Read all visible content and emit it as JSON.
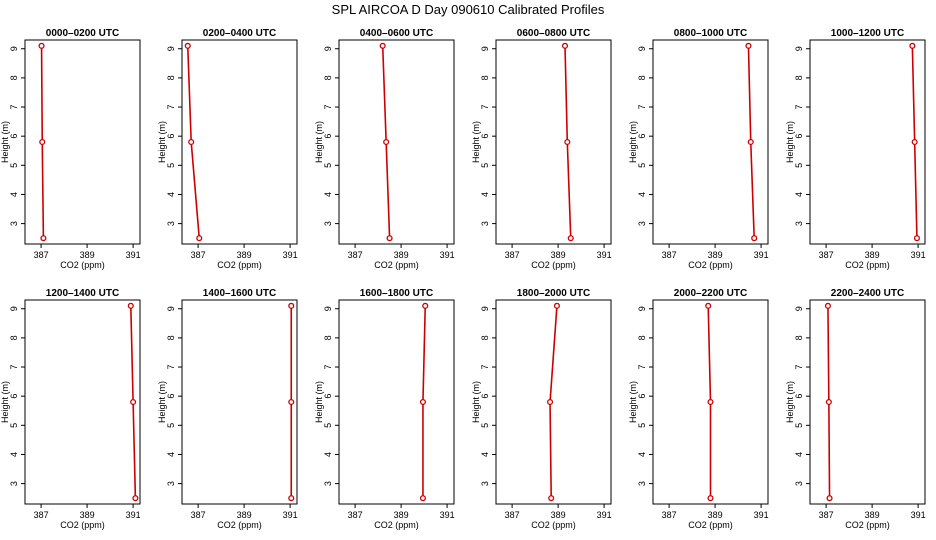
{
  "title": "SPL AIRCOA D  Day 090610  Calibrated Profiles",
  "chart_data": {
    "type": "line",
    "xlabel": "CO2 (ppm)",
    "ylabel": "Height (m)",
    "xlim": [
      386.3,
      391.3
    ],
    "ylim": [
      2.3,
      9.3
    ],
    "xticks": [
      387,
      389,
      391
    ],
    "yticks": [
      3,
      4,
      5,
      6,
      7,
      8,
      9
    ],
    "heights": [
      2.5,
      5.8,
      9.1
    ],
    "grid": false,
    "line_color": "#cc0000",
    "panels": [
      {
        "title": "0000–0200 UTC",
        "co2": [
          387.1,
          387.05,
          387.02
        ]
      },
      {
        "title": "0200–0400 UTC",
        "co2": [
          387.05,
          386.7,
          386.55
        ]
      },
      {
        "title": "0400–0600 UTC",
        "co2": [
          388.5,
          388.35,
          388.2
        ]
      },
      {
        "title": "0600–0800 UTC",
        "co2": [
          389.55,
          389.4,
          389.3
        ]
      },
      {
        "title": "0800–1000 UTC",
        "co2": [
          390.7,
          390.55,
          390.45
        ]
      },
      {
        "title": "1000–1200 UTC",
        "co2": [
          390.95,
          390.85,
          390.75
        ]
      },
      {
        "title": "1200–1400 UTC",
        "co2": [
          391.1,
          391.0,
          390.9
        ]
      },
      {
        "title": "1400–1600 UTC",
        "co2": [
          391.05,
          391.05,
          391.05
        ]
      },
      {
        "title": "1600–1800 UTC",
        "co2": [
          389.95,
          389.95,
          390.05
        ]
      },
      {
        "title": "1800–2000 UTC",
        "co2": [
          388.7,
          388.65,
          388.95
        ]
      },
      {
        "title": "2000–2200 UTC",
        "co2": [
          388.8,
          388.8,
          388.7
        ]
      },
      {
        "title": "2200–2400 UTC",
        "co2": [
          387.15,
          387.12,
          387.08
        ]
      }
    ]
  }
}
